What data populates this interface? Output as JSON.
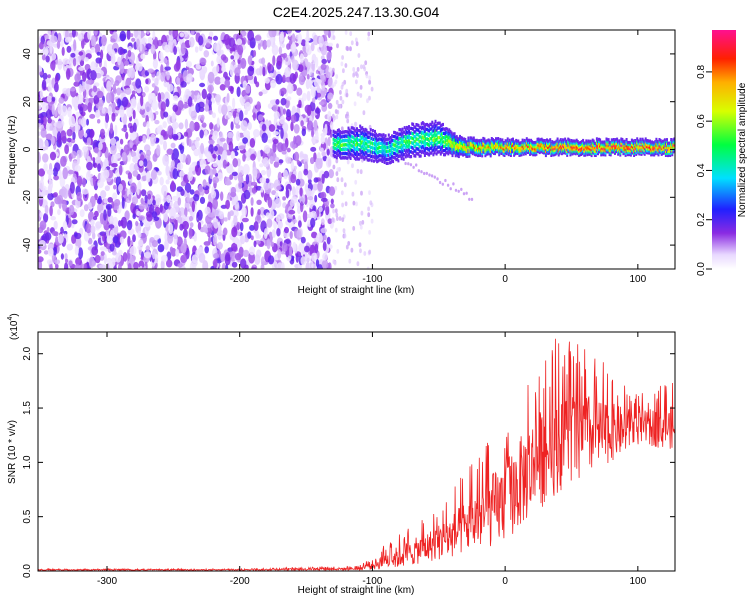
{
  "title": "C2E4.2025.247.13.30.G04",
  "chart_data": [
    {
      "type": "heatmap",
      "title": "C2E4.2025.247.13.30.G04",
      "xlabel": "Height of straight line (km)",
      "ylabel": "Frequency (Hz)",
      "xlim": [
        -352,
        128
      ],
      "ylim": [
        -50,
        50
      ],
      "xticks": [
        -300,
        -200,
        -100,
        0,
        100
      ],
      "yticks": [
        -40,
        -20,
        0,
        20,
        40
      ],
      "xtick_labels": [
        "-300",
        "-200",
        "-100",
        "0",
        "100"
      ],
      "ytick_labels": [
        "-40",
        "-20",
        "0",
        "20",
        "40"
      ],
      "noise_region_x": [
        -352,
        -130
      ],
      "signal_band": {
        "x": [
          -130,
          -110,
          -90,
          -70,
          -50,
          -40,
          -30,
          0,
          50,
          100,
          128
        ],
        "center_freq": [
          2,
          3,
          0,
          4,
          5,
          2,
          1,
          1,
          1,
          1,
          1
        ],
        "half_width": [
          5,
          6,
          5,
          6,
          6,
          4,
          3,
          2.5,
          2.5,
          2.5,
          2.5
        ],
        "peak_amplitude": [
          0.55,
          0.55,
          0.5,
          0.55,
          0.6,
          0.7,
          0.8,
          0.85,
          0.95,
          0.95,
          0.9
        ]
      },
      "colorbar": {
        "label": "Normalized spectral amplitude",
        "range": [
          0,
          0.97
        ],
        "ticks": [
          0.0,
          0.2,
          0.4,
          0.6,
          0.8
        ],
        "tick_labels": [
          "0.0",
          "0.2",
          "0.4",
          "0.6",
          "0.8"
        ]
      }
    },
    {
      "type": "line",
      "xlabel": "Height of straight line (km)",
      "ylabel": "SNR (10 * v/v)",
      "multiplier": "(x10",
      "multiplier_exp": "4",
      "multiplier_close": ")",
      "xlim": [
        -352,
        128
      ],
      "ylim": [
        0,
        2.2
      ],
      "xticks": [
        -300,
        -200,
        -100,
        0,
        100
      ],
      "yticks": [
        0.0,
        0.5,
        1.0,
        1.5,
        2.0
      ],
      "xtick_labels": [
        "-300",
        "-200",
        "-100",
        "0",
        "100"
      ],
      "ytick_labels": [
        "0.0",
        "0.5",
        "1.0",
        "1.5",
        "2.0"
      ],
      "color": "#ee2222",
      "envelope": {
        "x": [
          -352,
          -200,
          -110,
          -100,
          -80,
          -60,
          -40,
          -20,
          0,
          20,
          40,
          60,
          80,
          100,
          128
        ],
        "mean": [
          0.01,
          0.01,
          0.02,
          0.05,
          0.12,
          0.2,
          0.3,
          0.45,
          0.6,
          0.9,
          1.15,
          1.2,
          1.25,
          1.3,
          1.3
        ],
        "max": [
          0.02,
          0.02,
          0.05,
          0.15,
          0.35,
          0.5,
          0.75,
          1.1,
          1.45,
          1.9,
          2.2,
          2.1,
          1.85,
          1.65,
          1.75
        ]
      }
    }
  ]
}
